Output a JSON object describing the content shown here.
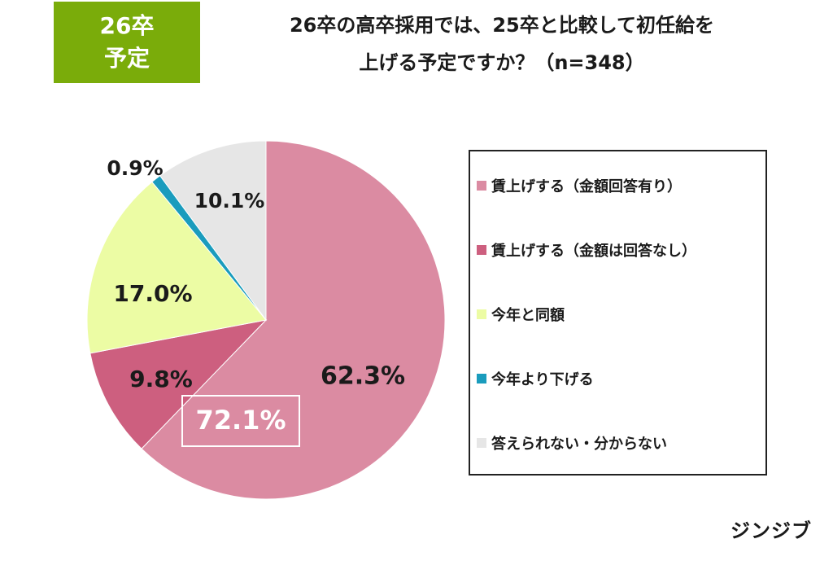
{
  "tag": {
    "line1": "26卒",
    "line2": "予定"
  },
  "title": {
    "line1": "26卒の高卒採用では、25卒と比較して初任給を",
    "line2": "上げる予定ですか？（n=348）"
  },
  "chart_data": {
    "type": "pie",
    "slices": [
      {
        "name": "賃上げする（金額回答有り）",
        "value": 62.3,
        "label": "62.3%",
        "color": "#db8ba2"
      },
      {
        "name": "賃上げする（金額は回答なし）",
        "value": 9.8,
        "label": "9.8%",
        "color": "#cd5f7f"
      },
      {
        "name": "今年と同額",
        "value": 17.0,
        "label": "17.0%",
        "color": "#ecfca4"
      },
      {
        "name": "今年より下げる",
        "value": 0.9,
        "label": "0.9%",
        "color": "#1a9cbd"
      },
      {
        "name": "答えられない・分からない",
        "value": 10.1,
        "label": "10.1%",
        "color": "#e6e6e6"
      }
    ],
    "combined_label": "72.1%",
    "legend_position": "right"
  },
  "brand": "ジンジブ"
}
